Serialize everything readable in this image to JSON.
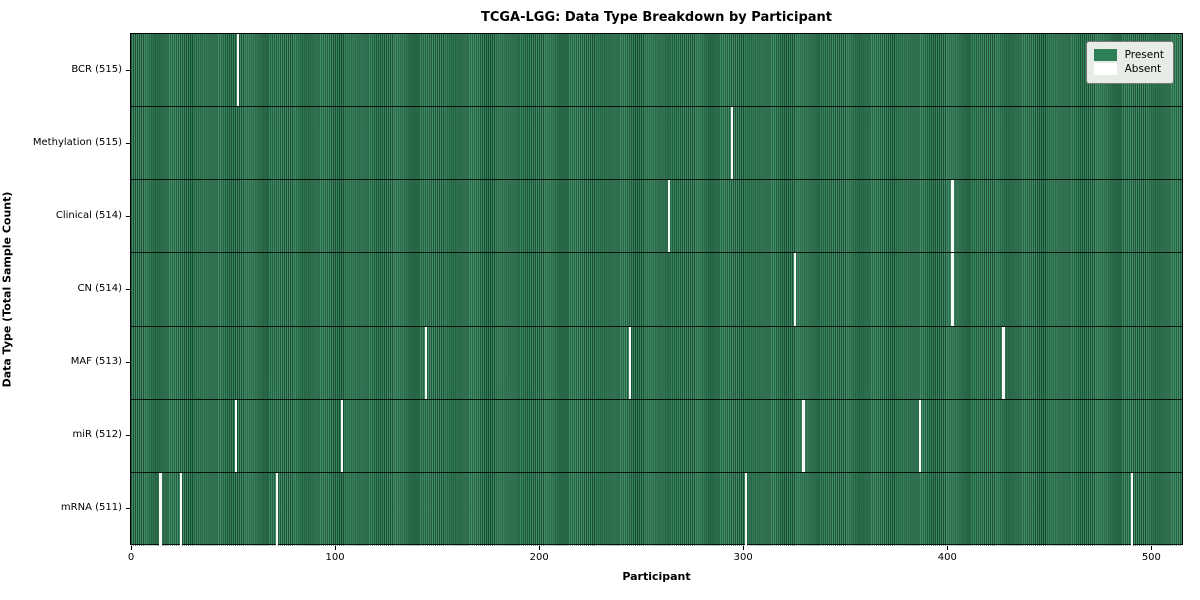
{
  "chart_data": {
    "type": "heatmap",
    "title": "TCGA-LGG: Data Type Breakdown by Participant",
    "xlabel": "Participant",
    "ylabel": "Data Type (Total Sample Count)",
    "x_ticks": [
      0,
      100,
      200,
      300,
      400,
      500
    ],
    "x_range": [
      -0.5,
      515.5
    ],
    "n_participants": 516,
    "grid": false,
    "legend": {
      "position": "upper right",
      "entries": [
        {
          "label": "Present",
          "color": "#2e8156"
        },
        {
          "label": "Absent",
          "color": "#ffffff"
        }
      ]
    },
    "colors": {
      "present_green": "#2e8156",
      "cell_edge_dark": "#14402a",
      "absent_white": "#f7f9f7",
      "row_separator": "#000000"
    },
    "rows": [
      {
        "label": "BCR (515)",
        "present_count": 515,
        "absent_participants": [
          52
        ]
      },
      {
        "label": "Methylation (515)",
        "present_count": 515,
        "absent_participants": [
          294
        ]
      },
      {
        "label": "Clinical (514)",
        "present_count": 514,
        "absent_participants": [
          263,
          402
        ]
      },
      {
        "label": "CN (514)",
        "present_count": 514,
        "absent_participants": [
          325,
          402
        ]
      },
      {
        "label": "MAF (513)",
        "present_count": 513,
        "absent_participants": [
          144,
          244,
          427
        ]
      },
      {
        "label": "miR (512)",
        "present_count": 512,
        "absent_participants": [
          51,
          103,
          329,
          386
        ]
      },
      {
        "label": "mRNA (511)",
        "present_count": 511,
        "absent_participants": [
          14,
          24,
          71,
          301,
          490
        ]
      }
    ]
  }
}
